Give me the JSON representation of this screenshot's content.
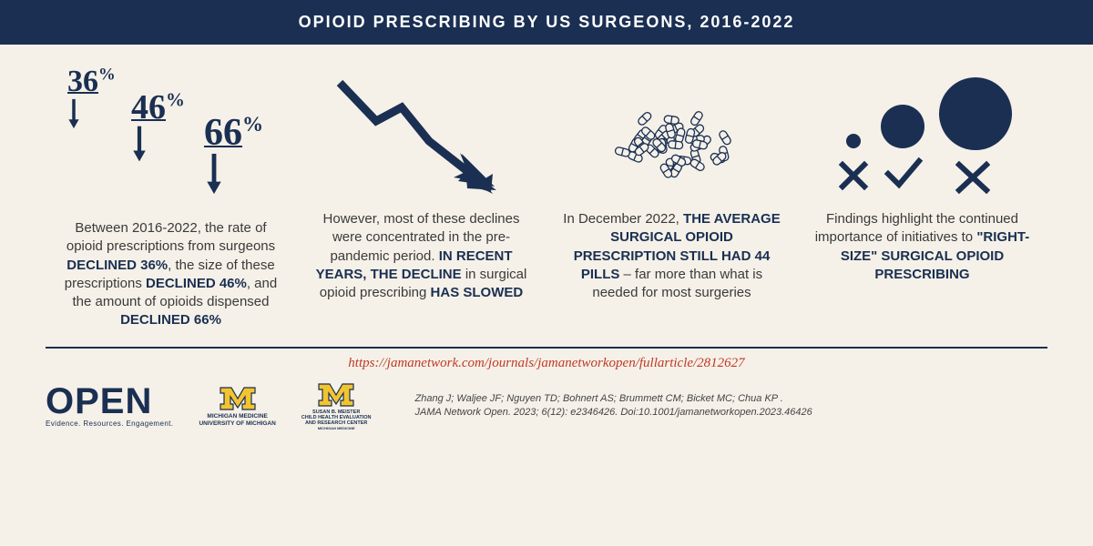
{
  "colors": {
    "navy": "#1a2f52",
    "maize": "#f2c430",
    "cream": "#f5f1e8",
    "red": "#c23824",
    "text": "#3a3a3a"
  },
  "header": {
    "title": "OPIOID PRESCRIBING BY US SURGEONS, 2016-2022"
  },
  "columns": [
    {
      "stats": [
        {
          "value": "36",
          "suffix": "%",
          "fontsize": 34,
          "offsetY": 0
        },
        {
          "value": "46",
          "suffix": "%",
          "fontsize": 38,
          "offsetY": 26
        },
        {
          "value": "66",
          "suffix": "%",
          "fontsize": 42,
          "offsetY": 52
        }
      ],
      "text_html": "Between 2016-2022, the rate of opioid prescriptions from surgeons <b>DECLINED 36%</b>, the size of these prescriptions <b>DECLINED 46%</b>, and the amount of opioids dispensed <b>DECLINED 66%</b>"
    },
    {
      "text_html": "However, most of these declines were concentrated in the pre-pandemic period. <b>IN RECENT YEARS, THE DECLINE</b> in surgical opioid prescribing <b>HAS SLOWED</b>"
    },
    {
      "text_html": "In December 2022, <b>THE AVERAGE SURGICAL OPIOID PRESCRIPTION STILL HAD 44 PILLS</b> – far more than what is needed for most surgeries"
    },
    {
      "text_html": "Findings highlight the continued importance of initiatives to <b>\"RIGHT-SIZE\" SURGICAL OPIOID PRESCRIBING</b>"
    }
  ],
  "url": "https://jamanetwork.com/journals/jamanetworkopen/fullarticle/2812627",
  "logos": {
    "open": {
      "title": "OPEN",
      "tag": "Evidence. Resources. Engagement."
    },
    "m1": {
      "line1": "MICHIGAN MEDICINE",
      "line2": "UNIVERSITY OF MICHIGAN"
    },
    "m2": {
      "line1": "SUSAN B. MEISTER",
      "line2": "CHILD HEALTH EVALUATION",
      "line3": "AND RESEARCH CENTER",
      "line4": "MICHIGAN MEDICINE"
    }
  },
  "citation": {
    "authors": "Zhang J; Waljee JF; Nguyen TD; Bohnert AS; Brummett CM; Bicket MC; Chua KP .",
    "ref": "JAMA Network Open. 2023; 6(12): e2346426. Doi:10.1001/jamanetworkopen.2023.46426"
  }
}
